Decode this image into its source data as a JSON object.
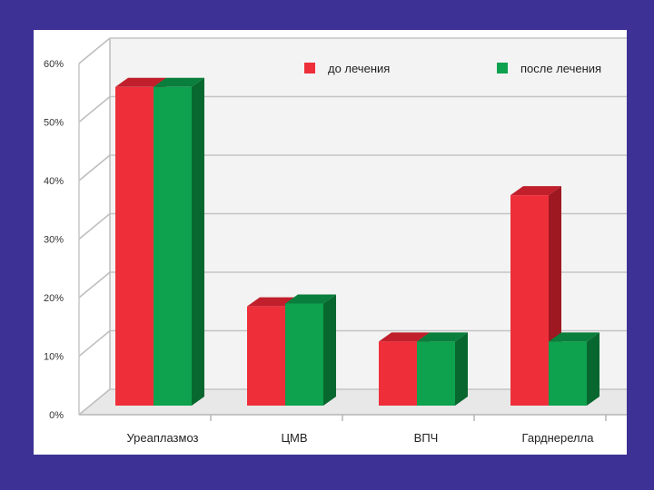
{
  "chart_data": {
    "type": "bar",
    "categories": [
      "Уреаплазмоз",
      "ЦМВ",
      "ВПЧ",
      "Гарднерелла"
    ],
    "series": [
      {
        "name": "до лечения",
        "values": [
          56,
          18.5,
          12.5,
          37.5
        ]
      },
      {
        "name": "после лечения",
        "values": [
          56,
          19,
          12.5,
          12.5
        ]
      }
    ],
    "y_ticks": [
      "0%",
      "10%",
      "20%",
      "30%",
      "40%",
      "50%",
      "60%"
    ],
    "ylim": [
      0,
      60
    ],
    "title": "",
    "xlabel": "",
    "ylabel": "",
    "legend_position": "top",
    "grid": true,
    "colors": {
      "до лечения": {
        "front": "#ee2f3a",
        "top": "#c01f2b",
        "side": "#9e1822"
      },
      "после лечения": {
        "front": "#0ea14e",
        "top": "#0a7e3c",
        "side": "#08672f"
      }
    }
  }
}
